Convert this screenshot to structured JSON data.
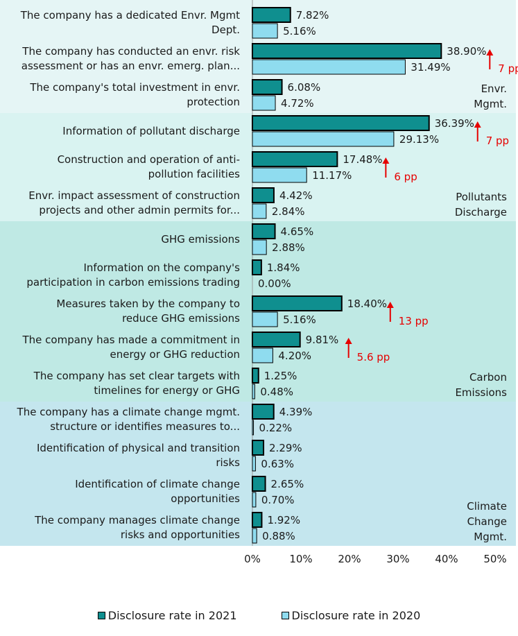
{
  "colors": {
    "s2021": "#0f8f8f",
    "s2020": "#8fdcef",
    "annotation": "#e60000",
    "bg_envr": "#e5f5f5",
    "bg_pollutants": "#d9f3f1",
    "bg_carbon": "#bfe9e4",
    "bg_climate": "#c4e6ee"
  },
  "chart_data": {
    "type": "bar",
    "orientation": "horizontal",
    "xlim": [
      0,
      50
    ],
    "x_ticks": [
      "0%",
      "10%",
      "20%",
      "30%",
      "40%",
      "50%"
    ],
    "series": [
      {
        "name": "Disclosure rate in 2021"
      },
      {
        "name": "Disclosure rate in 2020"
      }
    ],
    "legend_position": "bottom",
    "groups": [
      {
        "label_lines": [
          "Envr.",
          "Mgmt."
        ],
        "color_key": "bg_envr",
        "items": [
          {
            "label_lines": [
              "The company has a dedicated Envr. Mgmt",
              "Dept."
            ],
            "v2021": 7.82,
            "v2020": 5.16,
            "l2021": "7.82%",
            "l2020": "5.16%",
            "annotation": ""
          },
          {
            "label_lines": [
              "The company has conducted an envr. risk",
              "assessment or has an envr. emerg. plan..."
            ],
            "v2021": 38.9,
            "v2020": 31.49,
            "l2021": "38.90%",
            "l2020": "31.49%",
            "annotation": "7 pp"
          },
          {
            "label_lines": [
              "The company's total investment in envr.",
              "protection"
            ],
            "v2021": 6.08,
            "v2020": 4.72,
            "l2021": "6.08%",
            "l2020": "4.72%",
            "annotation": ""
          }
        ]
      },
      {
        "label_lines": [
          "Pollutants",
          "Discharge"
        ],
        "color_key": "bg_pollutants",
        "items": [
          {
            "label_lines": [
              "Information of pollutant discharge"
            ],
            "v2021": 36.39,
            "v2020": 29.13,
            "l2021": "36.39%",
            "l2020": "29.13%",
            "annotation": "7 pp"
          },
          {
            "label_lines": [
              "Construction and operation of anti-",
              "pollution facilities"
            ],
            "v2021": 17.48,
            "v2020": 11.17,
            "l2021": "17.48%",
            "l2020": "11.17%",
            "annotation": "6 pp"
          },
          {
            "label_lines": [
              "Envr. impact assessment of construction",
              "projects and other admin permits for..."
            ],
            "v2021": 4.42,
            "v2020": 2.84,
            "l2021": "4.42%",
            "l2020": "2.84%",
            "annotation": ""
          }
        ]
      },
      {
        "label_lines": [
          "Carbon",
          "Emissions"
        ],
        "color_key": "bg_carbon",
        "items": [
          {
            "label_lines": [
              "GHG emissions"
            ],
            "v2021": 4.65,
            "v2020": 2.88,
            "l2021": "4.65%",
            "l2020": "2.88%",
            "annotation": ""
          },
          {
            "label_lines": [
              "Information on the company's",
              "participation in carbon emissions trading"
            ],
            "v2021": 1.84,
            "v2020": 0.0,
            "l2021": "1.84%",
            "l2020": "0.00%",
            "annotation": ""
          },
          {
            "label_lines": [
              "Measures taken by the company to",
              "reduce GHG emissions"
            ],
            "v2021": 18.4,
            "v2020": 5.16,
            "l2021": "18.40%",
            "l2020": "5.16%",
            "annotation": "13 pp"
          },
          {
            "label_lines": [
              "The company has made a commitment in",
              "energy or GHG reduction"
            ],
            "v2021": 9.81,
            "v2020": 4.2,
            "l2021": "9.81%",
            "l2020": "4.20%",
            "annotation": "5.6 pp"
          },
          {
            "label_lines": [
              "The company has set clear targets with",
              "timelines for energy or GHG"
            ],
            "v2021": 1.25,
            "v2020": 0.48,
            "l2021": "1.25%",
            "l2020": "0.48%",
            "annotation": ""
          }
        ]
      },
      {
        "label_lines": [
          "Climate",
          "Change",
          "Mgmt."
        ],
        "color_key": "bg_climate",
        "items": [
          {
            "label_lines": [
              "The company has a climate change mgmt.",
              "structure or identifies measures to..."
            ],
            "v2021": 4.39,
            "v2020": 0.22,
            "l2021": "4.39%",
            "l2020": "0.22%",
            "annotation": ""
          },
          {
            "label_lines": [
              "Identification of physical and transition",
              "risks"
            ],
            "v2021": 2.29,
            "v2020": 0.63,
            "l2021": "2.29%",
            "l2020": "0.63%",
            "annotation": ""
          },
          {
            "label_lines": [
              "Identification of climate change",
              "opportunities"
            ],
            "v2021": 2.65,
            "v2020": 0.7,
            "l2021": "2.65%",
            "l2020": "0.70%",
            "annotation": ""
          },
          {
            "label_lines": [
              "The company manages climate change",
              "risks and opportunities"
            ],
            "v2021": 1.92,
            "v2020": 0.88,
            "l2021": "1.92%",
            "l2020": "0.88%",
            "annotation": ""
          }
        ]
      }
    ]
  }
}
